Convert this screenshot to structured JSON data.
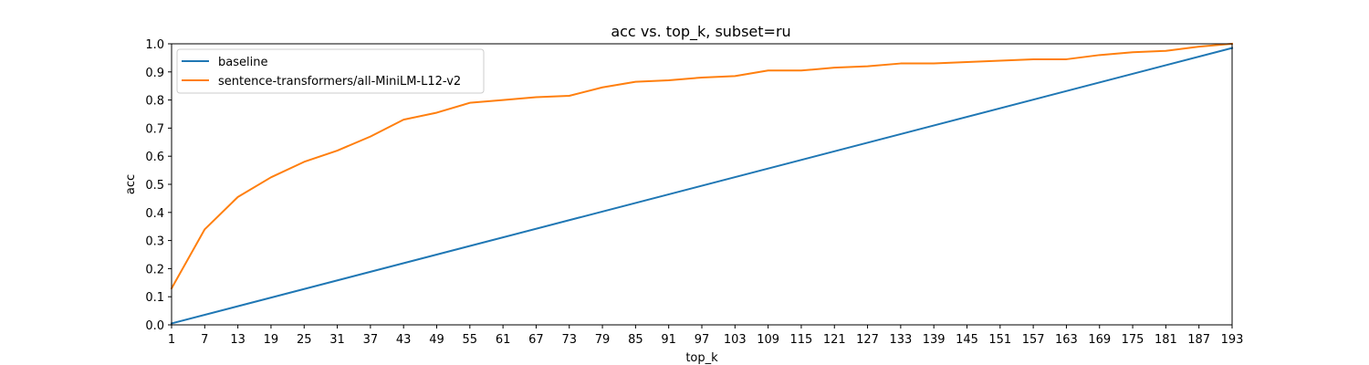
{
  "chart_data": {
    "type": "line",
    "title": "acc vs. top_k, subset=ru",
    "xlabel": "top_k",
    "ylabel": "acc",
    "xlim": [
      1,
      193
    ],
    "ylim": [
      0.0,
      1.0
    ],
    "x_ticks": [
      "1",
      "7",
      "13",
      "19",
      "25",
      "31",
      "37",
      "43",
      "49",
      "55",
      "61",
      "67",
      "73",
      "79",
      "85",
      "91",
      "97",
      "103",
      "109",
      "115",
      "121",
      "127",
      "133",
      "139",
      "145",
      "151",
      "157",
      "163",
      "169",
      "175",
      "181",
      "187",
      "193"
    ],
    "y_ticks": [
      "0.0",
      "0.1",
      "0.2",
      "0.3",
      "0.4",
      "0.5",
      "0.6",
      "0.7",
      "0.8",
      "0.9",
      "1.0"
    ],
    "grid": false,
    "legend_position": "top-left",
    "series": [
      {
        "name": "baseline",
        "color": "#1f77b4",
        "x": [
          1,
          193
        ],
        "y": [
          0.005,
          0.985
        ]
      },
      {
        "name": "sentence-transformers/all-MiniLM-L12-v2",
        "color": "#ff7f0e",
        "x": [
          1,
          7,
          13,
          19,
          25,
          31,
          37,
          43,
          49,
          55,
          61,
          67,
          73,
          79,
          85,
          91,
          97,
          103,
          109,
          115,
          121,
          127,
          133,
          139,
          145,
          151,
          157,
          163,
          169,
          175,
          181,
          187,
          193
        ],
        "y": [
          0.13,
          0.34,
          0.455,
          0.525,
          0.58,
          0.62,
          0.67,
          0.73,
          0.755,
          0.79,
          0.8,
          0.81,
          0.815,
          0.845,
          0.865,
          0.87,
          0.88,
          0.885,
          0.905,
          0.905,
          0.915,
          0.92,
          0.93,
          0.93,
          0.935,
          0.94,
          0.945,
          0.945,
          0.96,
          0.97,
          0.975,
          0.99,
          1.0
        ]
      }
    ]
  }
}
